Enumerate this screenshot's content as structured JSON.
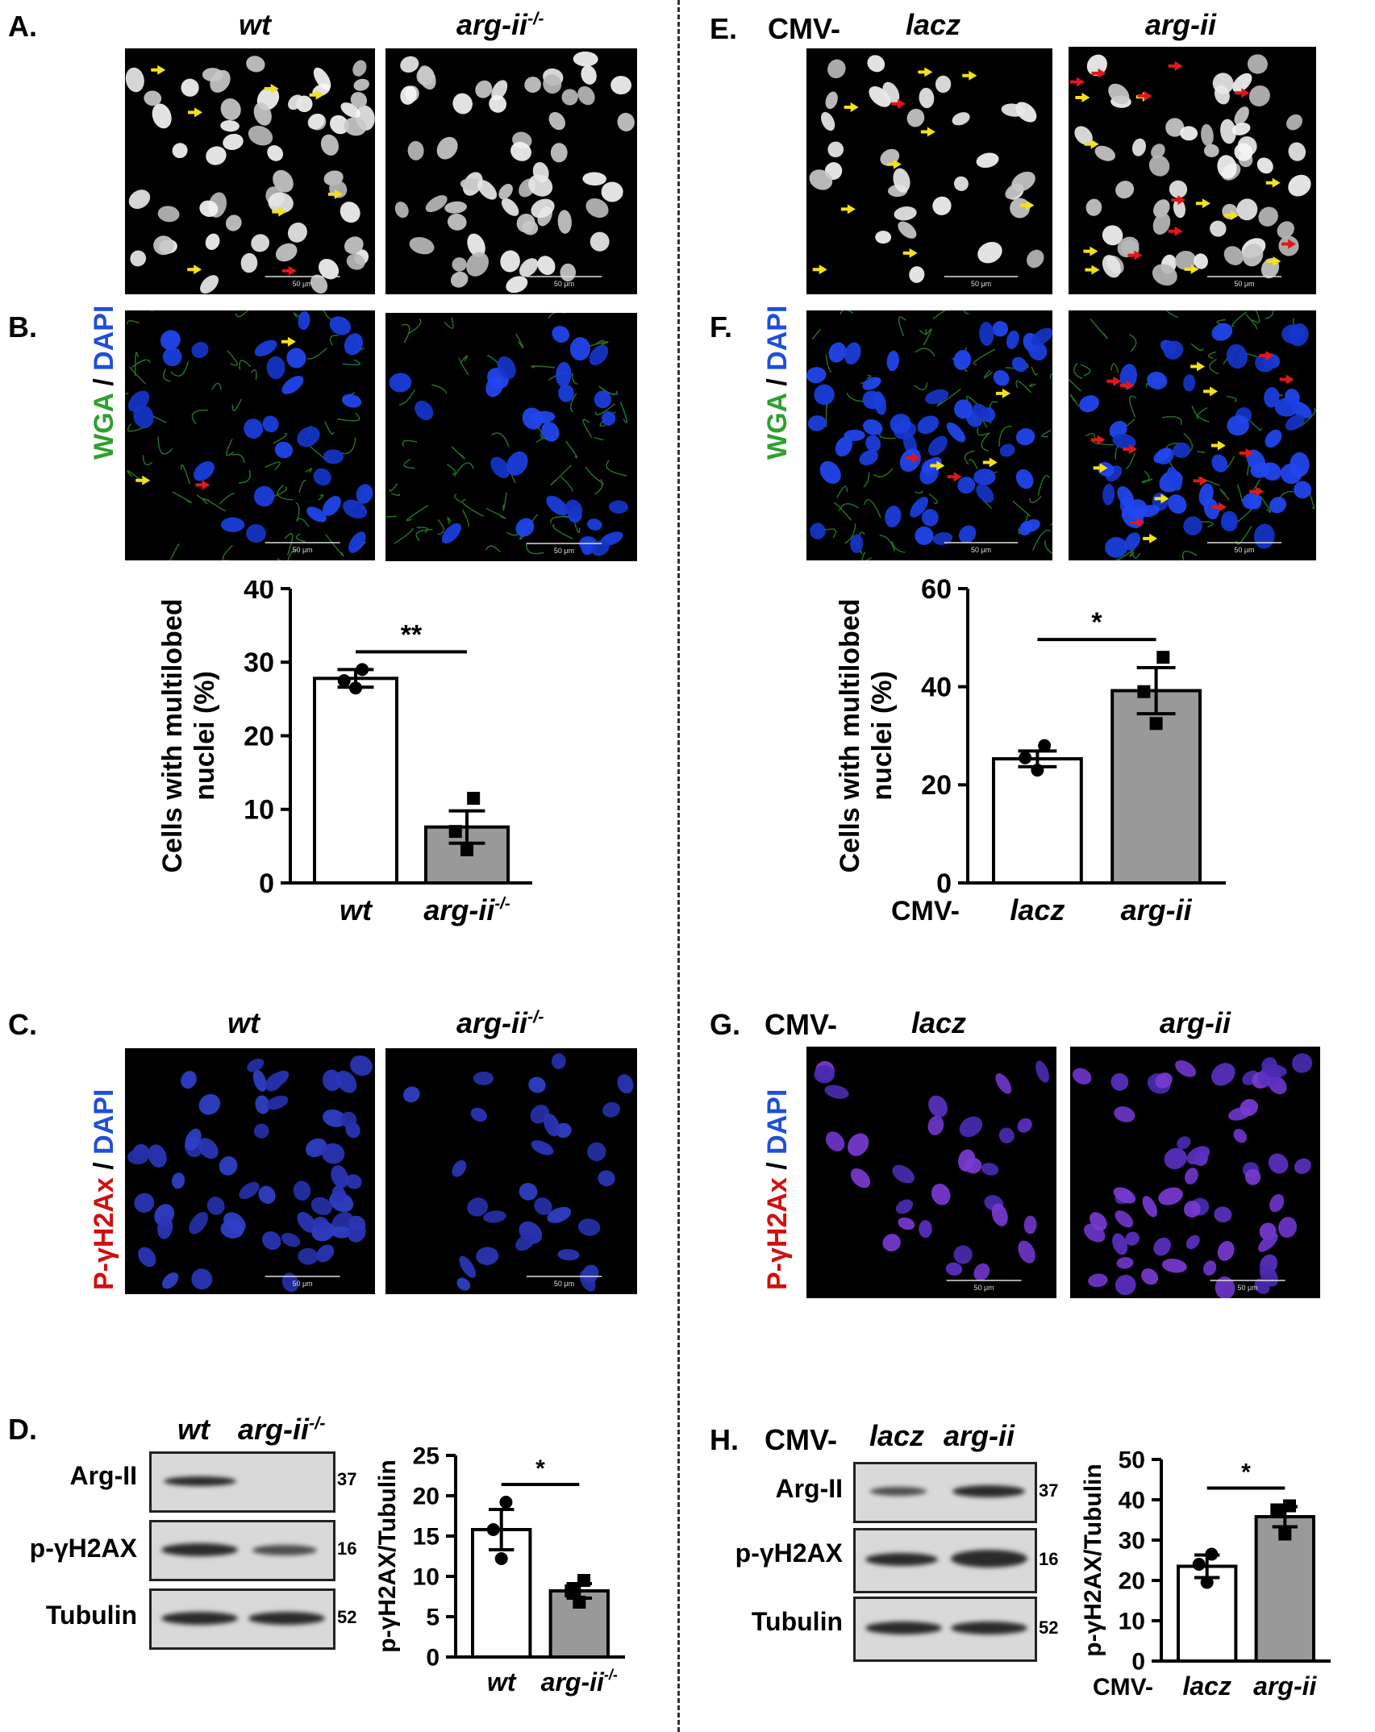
{
  "panels": {
    "A": {
      "letter": "A.",
      "left_label": "wt",
      "right_label_base": "arg-ii",
      "right_label_sup": "-/-"
    },
    "B": {
      "letter": "B.",
      "stain_green": "WGA",
      "stain_sep": " / ",
      "stain_blue": "DAPI"
    },
    "C": {
      "letter": "C.",
      "left_label": "wt",
      "right_label_base": "arg-ii",
      "right_label_sup": "-/-",
      "stain_red": "P-γH2Ax",
      "stain_sep": " / ",
      "stain_blue": "DAPI"
    },
    "D": {
      "letter": "D.",
      "left_label": "wt",
      "right_label_base": "arg-ii",
      "right_label_sup": "-/-",
      "rows": [
        "Arg-II",
        "p-γH2AX",
        "Tubulin"
      ],
      "mw": [
        "37",
        "16",
        "52"
      ]
    },
    "E": {
      "letter": "E.",
      "prefix": "CMV-",
      "left_label": "lacz",
      "right_label": "arg-ii"
    },
    "F": {
      "letter": "F.",
      "stain_green": "WGA",
      "stain_sep": " / ",
      "stain_blue": "DAPI"
    },
    "G": {
      "letter": "G.",
      "prefix": "CMV-",
      "left_label": "lacz",
      "right_label": "arg-ii",
      "stain_red": "P-γH2Ax",
      "stain_sep": " / ",
      "stain_blue": "DAPI"
    },
    "H": {
      "letter": "H.",
      "prefix": "CMV-",
      "left_label": "lacz",
      "right_label": "arg-ii",
      "rows": [
        "Arg-II",
        "p-γH2AX",
        "Tubulin"
      ],
      "mw": [
        "37",
        "16",
        "52"
      ]
    }
  },
  "scale_bar": "50 μm",
  "colors": {
    "bar_white": "#ffffff",
    "bar_gray": "#999999",
    "wga_green": "#2fa02f",
    "dapi_blue": "#1f4fd6",
    "red": "#d01010"
  },
  "chart_data": [
    {
      "id": "B-bar",
      "type": "bar",
      "ylabel_line1": "Cells with multilobed",
      "ylabel_line2": "nuclei (%)",
      "categories": [
        "wt",
        "arg-ii-/-"
      ],
      "category_display": [
        {
          "base": "wt",
          "sup": ""
        },
        {
          "base": "arg-ii",
          "sup": "-/-"
        }
      ],
      "values": [
        27.8,
        7.6
      ],
      "errors": [
        1.2,
        2.2
      ],
      "points": [
        [
          29.0,
          27.5,
          26.5
        ],
        [
          11.5,
          7.0,
          4.5
        ]
      ],
      "ylim": [
        0,
        40
      ],
      "yticks": [
        0,
        10,
        20,
        30,
        40
      ],
      "significance": "**",
      "x_prefix": ""
    },
    {
      "id": "F-bar",
      "type": "bar",
      "ylabel_line1": "Cells with multilobed",
      "ylabel_line2": "nuclei (%)",
      "categories": [
        "lacz",
        "arg-ii"
      ],
      "category_display": [
        {
          "base": "lacz",
          "sup": ""
        },
        {
          "base": "arg-ii",
          "sup": ""
        }
      ],
      "values": [
        25.3,
        39.2
      ],
      "errors": [
        1.6,
        4.7
      ],
      "points": [
        [
          28.0,
          25.5,
          23.0
        ],
        [
          46.0,
          39.0,
          32.5
        ]
      ],
      "ylim": [
        0,
        60
      ],
      "yticks": [
        0,
        20,
        40,
        60
      ],
      "significance": "*",
      "x_prefix": "CMV-"
    },
    {
      "id": "D-bar",
      "type": "bar",
      "ylabel_line1": "p-γH2AX/Tubulin",
      "ylabel_line2": "",
      "categories": [
        "wt",
        "arg-ii-/-"
      ],
      "category_display": [
        {
          "base": "wt",
          "sup": ""
        },
        {
          "base": "arg-ii",
          "sup": "-/-"
        }
      ],
      "values": [
        15.8,
        8.2
      ],
      "errors": [
        2.5,
        0.9
      ],
      "points": [
        [
          19.2,
          15.8,
          12.2
        ],
        [
          9.5,
          8.2,
          6.8
        ]
      ],
      "ylim": [
        0,
        25
      ],
      "yticks": [
        0,
        5,
        10,
        15,
        20,
        25
      ],
      "significance": "*",
      "x_prefix": ""
    },
    {
      "id": "H-bar",
      "type": "bar",
      "ylabel_line1": "p-γH2AX/Tubulin",
      "ylabel_line2": "",
      "categories": [
        "lacz",
        "arg-ii"
      ],
      "category_display": [
        {
          "base": "lacz",
          "sup": ""
        },
        {
          "base": "arg-ii",
          "sup": ""
        }
      ],
      "values": [
        23.5,
        35.8
      ],
      "errors": [
        2.8,
        2.5
      ],
      "points": [
        [
          26.5,
          24.0,
          19.5
        ],
        [
          38.5,
          37.5,
          31.5
        ]
      ],
      "ylim": [
        0,
        50
      ],
      "yticks": [
        0,
        10,
        20,
        30,
        40,
        50
      ],
      "significance": "*",
      "x_prefix": "CMV-"
    }
  ]
}
